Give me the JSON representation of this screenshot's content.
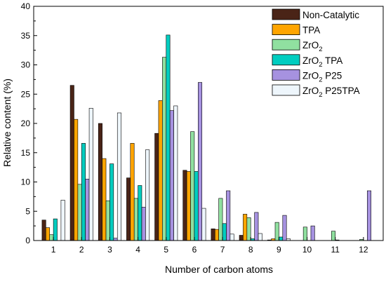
{
  "chart_data": {
    "type": "bar",
    "xlabel": "Number of carbon atoms",
    "ylabel": "Relative content (%)",
    "ylim": [
      0,
      40
    ],
    "yticks": [
      0,
      5,
      10,
      15,
      20,
      25,
      30,
      35,
      40
    ],
    "categories": [
      "1",
      "2",
      "3",
      "4",
      "5",
      "6",
      "7",
      "8",
      "9",
      "10",
      "11",
      "12"
    ],
    "grid": false,
    "legend_position": "top-right",
    "series": [
      {
        "name": "Non-Catalytic",
        "label_main": "Non-Catalytic",
        "label_sub": "",
        "label_rest": "",
        "color": "#4a2417",
        "values": [
          3.5,
          26.5,
          20.0,
          10.7,
          18.3,
          12.0,
          2.0,
          0.9,
          0.1,
          0.0,
          0.0,
          0.0
        ]
      },
      {
        "name": "TPA",
        "label_main": "TPA",
        "label_sub": "",
        "label_rest": "",
        "color": "#ffa500",
        "values": [
          2.2,
          20.7,
          14.0,
          16.6,
          23.9,
          11.8,
          1.9,
          4.5,
          0.3,
          0.0,
          0.0,
          0.0
        ]
      },
      {
        "name": "ZrO2",
        "label_main": "ZrO",
        "label_sub": "2",
        "label_rest": "",
        "color": "#90e0a0",
        "values": [
          1.0,
          9.6,
          6.8,
          7.2,
          31.3,
          18.6,
          7.2,
          3.9,
          3.1,
          2.3,
          1.6,
          0.2
        ]
      },
      {
        "name": "ZrO2 TPA",
        "label_main": "ZrO",
        "label_sub": "2",
        "label_rest": " TPA",
        "color": "#00cdc0",
        "values": [
          3.7,
          16.6,
          13.1,
          9.4,
          35.1,
          11.8,
          2.9,
          0.3,
          0.6,
          0.0,
          0.1,
          0.0
        ]
      },
      {
        "name": "ZrO2 P25",
        "label_main": "ZrO",
        "label_sub": "2",
        "label_rest": " P25",
        "color": "#a692e0",
        "values": [
          0.0,
          10.5,
          0.4,
          5.7,
          22.2,
          27.0,
          8.5,
          4.8,
          4.3,
          2.5,
          0.0,
          8.5
        ]
      },
      {
        "name": "ZrO2 P25TPA",
        "label_main": "ZrO",
        "label_sub": "2",
        "label_rest": " P25TPA",
        "color": "#eef6fc",
        "values": [
          6.9,
          22.6,
          21.8,
          15.5,
          23.0,
          5.5,
          1.1,
          1.2,
          0.3,
          0.0,
          0.0,
          0.0
        ]
      }
    ]
  }
}
